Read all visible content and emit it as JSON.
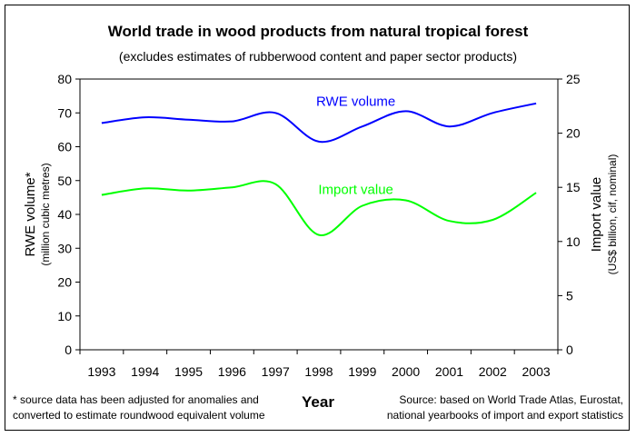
{
  "chart_data": {
    "type": "line",
    "title": "World trade in wood products from natural tropical forest",
    "subtitle": "(excludes estimates of rubberwood content and paper sector products)",
    "xlabel": "Year",
    "ylabel_left": "RWE volume*",
    "ylabel_left_sub": "(million cubic metres)",
    "ylabel_right": "Import value",
    "ylabel_right_sub": "(US$ billion, cif, nominal)",
    "categories": [
      "1993",
      "1994",
      "1995",
      "1996",
      "1997",
      "1998",
      "1999",
      "2000",
      "2001",
      "2002",
      "2003"
    ],
    "ylim_left": [
      0,
      80
    ],
    "yticks_left": [
      "0",
      "10",
      "20",
      "30",
      "40",
      "50",
      "60",
      "70",
      "80"
    ],
    "ylim_right": [
      0,
      25
    ],
    "yticks_right": [
      "0",
      "5",
      "10",
      "15",
      "20",
      "25"
    ],
    "series": [
      {
        "name": "RWE volume",
        "axis": "left",
        "color": "#0000ff",
        "values": [
          67,
          68.7,
          68,
          67.5,
          70,
          61.5,
          66,
          70.5,
          66,
          70,
          72.8
        ]
      },
      {
        "name": "Import value",
        "axis": "right",
        "color": "#00ff00",
        "values": [
          14.3,
          14.9,
          14.7,
          15.0,
          15.3,
          10.6,
          13.3,
          13.8,
          11.9,
          12.0,
          14.5
        ]
      }
    ],
    "footnote_left": [
      "* source data has been adjusted for anomalies and",
      "converted to estimate roundwood equivalent volume"
    ],
    "footnote_right": [
      "Source:  based on World Trade Atlas, Eurostat,",
      "national yearbooks of import and export statistics"
    ]
  }
}
